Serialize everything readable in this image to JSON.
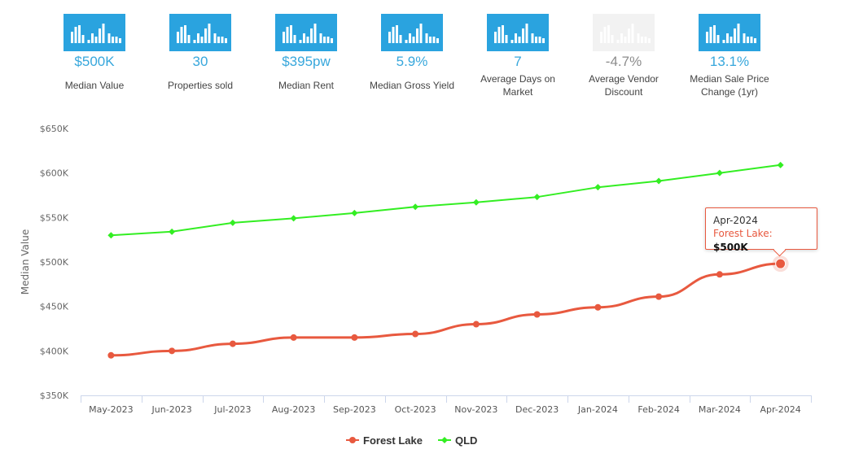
{
  "stats": [
    {
      "value": "$500K",
      "label": "Median Value",
      "faded": false
    },
    {
      "value": "30",
      "label": "Properties sold",
      "faded": false
    },
    {
      "value": "$395pw",
      "label": "Median Rent",
      "faded": false
    },
    {
      "value": "5.9%",
      "label": "Median Gross Yield",
      "faded": false
    },
    {
      "value": "7",
      "label": "Average Days on Market",
      "faded": false
    },
    {
      "value": "-4.7%",
      "label": "Average Vendor Discount",
      "faded": true
    },
    {
      "value": "13.1%",
      "label": "Median Sale Price Change (1yr)",
      "faded": false
    }
  ],
  "chart_data": {
    "type": "line",
    "title": "",
    "xlabel": "",
    "ylabel": "Median Value",
    "categories": [
      "May-2023",
      "Jun-2023",
      "Jul-2023",
      "Aug-2023",
      "Sep-2023",
      "Oct-2023",
      "Nov-2023",
      "Dec-2023",
      "Jan-2024",
      "Feb-2024",
      "Mar-2024",
      "Apr-2024"
    ],
    "yticks": [
      "$350K",
      "$400K",
      "$450K",
      "$500K",
      "$550K",
      "$600K",
      "$650K"
    ],
    "ytick_values": [
      350000,
      400000,
      450000,
      500000,
      550000,
      600000,
      650000
    ],
    "ylim": [
      350000,
      650000
    ],
    "series": [
      {
        "name": "Forest Lake",
        "color": "#e8593f",
        "values": [
          395000,
          400000,
          408000,
          415000,
          415000,
          419000,
          430000,
          441000,
          449000,
          461000,
          486000,
          498000
        ]
      },
      {
        "name": "QLD",
        "color": "#33ee22",
        "values": [
          530000,
          534000,
          544000,
          549000,
          555000,
          562000,
          567000,
          573000,
          584000,
          591000,
          600000,
          609000
        ]
      }
    ],
    "legend_position": "bottom",
    "tooltip": {
      "date": "Apr-2024",
      "series": "Forest Lake:",
      "value": "$500K"
    }
  }
}
